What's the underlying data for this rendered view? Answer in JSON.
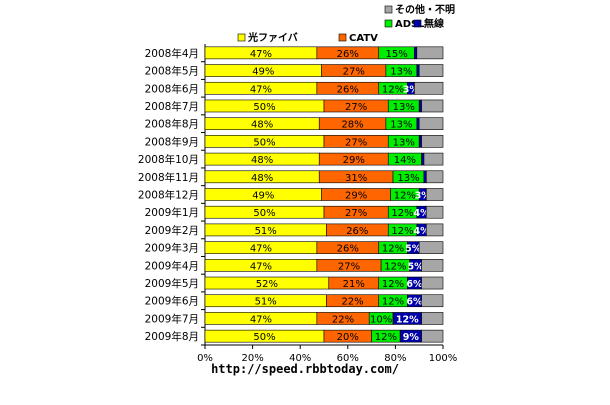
{
  "source_url": "http://speed.rbbtoday.com/",
  "chart_data": {
    "type": "bar",
    "orientation": "horizontal",
    "stacked": true,
    "percent_stacked": true,
    "xlim": [
      0,
      100
    ],
    "x_ticks": [
      "0%",
      "20%",
      "40%",
      "60%",
      "80%",
      "100%"
    ],
    "grid": false,
    "legend_position": "top-right",
    "categories": [
      "2008年4月",
      "2008年5月",
      "2008年6月",
      "2008年7月",
      "2008年8月",
      "2008年9月",
      "2008年10月",
      "2008年11月",
      "2008年12月",
      "2009年1月",
      "2009年2月",
      "2009年3月",
      "2009年4月",
      "2009年5月",
      "2009年6月",
      "2009年7月",
      "2009年8月"
    ],
    "series": [
      {
        "name": "光ファイバ",
        "color": "#FFFF00",
        "label_color": "#000000",
        "values": [
          47,
          49,
          47,
          50,
          48,
          50,
          48,
          48,
          49,
          50,
          51,
          47,
          47,
          52,
          51,
          47,
          50
        ],
        "labels": [
          "47%",
          "49%",
          "47%",
          "50%",
          "48%",
          "50%",
          "48%",
          "48%",
          "49%",
          "50%",
          "51%",
          "47%",
          "47%",
          "52%",
          "51%",
          "47%",
          "50%"
        ]
      },
      {
        "name": "CATV",
        "color": "#FF6600",
        "label_color": "#000000",
        "values": [
          26,
          27,
          26,
          27,
          28,
          27,
          29,
          31,
          29,
          27,
          26,
          26,
          27,
          21,
          22,
          22,
          20
        ],
        "labels": [
          "26%",
          "27%",
          "26%",
          "27%",
          "28%",
          "27%",
          "29%",
          "31%",
          "29%",
          "27%",
          "26%",
          "26%",
          "27%",
          "21%",
          "22%",
          "22%",
          "20%"
        ]
      },
      {
        "name": "ADSL",
        "color": "#00EE00",
        "label_color": "#000000",
        "values": [
          15,
          13,
          12,
          13,
          13,
          13,
          14,
          13,
          12,
          12,
          12,
          12,
          12,
          12,
          12,
          10,
          12
        ],
        "labels": [
          "15%",
          "13%",
          "12%",
          "13%",
          "13%",
          "13%",
          "14%",
          "13%",
          "12%",
          "12%",
          "12%",
          "12%",
          "12%",
          "12%",
          "12%",
          "10%",
          "12%"
        ]
      },
      {
        "name": "無線",
        "color": "#0000AA",
        "label_color": "#FFFFFF",
        "values": [
          1,
          1,
          3,
          1,
          1,
          1,
          1,
          1,
          3,
          4,
          4,
          5,
          5,
          6,
          6,
          12,
          9
        ],
        "labels": [
          "",
          "",
          "3%",
          "",
          "",
          "",
          "",
          "",
          "3%",
          "4%",
          "4%",
          "5%",
          "5%",
          "6%",
          "6%",
          "12%",
          "9%"
        ]
      },
      {
        "name": "その他・不明",
        "color": "#A6A6A6",
        "label_color": "#000000",
        "values": [
          11,
          10,
          12,
          9,
          10,
          9,
          8,
          7,
          7,
          7,
          7,
          10,
          9,
          9,
          9,
          9,
          9
        ],
        "labels": [
          "",
          "",
          "",
          "",
          "",
          "",
          "",
          "",
          "",
          "",
          "",
          "",
          "",
          "",
          "",
          "",
          ""
        ]
      }
    ]
  }
}
